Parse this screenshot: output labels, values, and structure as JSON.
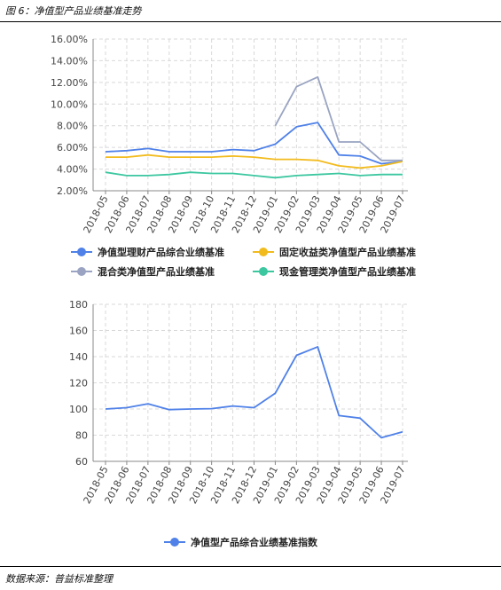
{
  "header": {
    "figure_title": "图 6：净值型产品业绩基准走势"
  },
  "footer": {
    "source": "数据来源：普益标准整理"
  },
  "colors": {
    "blue": "#4f81e8",
    "yellow": "#f2bb1d",
    "gray": "#9aa4c2",
    "green": "#3cc7a0",
    "grid": "#d9d9d9",
    "axis": "#888888"
  },
  "chart_data": [
    {
      "type": "line",
      "x": [
        "2018-05",
        "2018-06",
        "2018-07",
        "2018-08",
        "2018-09",
        "2018-10",
        "2018-11",
        "2018-12",
        "2019-01",
        "2019-02",
        "2019-03",
        "2019-04",
        "2019-05",
        "2019-06",
        "2019-07"
      ],
      "ylim": [
        0.02,
        0.16
      ],
      "yticks": [
        "2.00%",
        "4.00%",
        "6.00%",
        "8.00%",
        "10.00%",
        "12.00%",
        "14.00%",
        "16.00%"
      ],
      "grid": true,
      "legend": "bottom",
      "series": [
        {
          "name": "净值型理财产品综合业绩基准",
          "color": "#4f81e8",
          "values": [
            0.056,
            0.057,
            0.059,
            0.056,
            0.056,
            0.056,
            0.058,
            0.057,
            0.063,
            0.079,
            0.083,
            0.053,
            0.052,
            0.045,
            0.047
          ]
        },
        {
          "name": "固定收益类净值型产品业绩基准",
          "color": "#f2bb1d",
          "values": [
            0.051,
            0.051,
            0.053,
            0.051,
            0.051,
            0.051,
            0.052,
            0.051,
            0.049,
            0.049,
            0.048,
            0.043,
            0.041,
            0.043,
            0.047
          ]
        },
        {
          "name": "混合类净值型产品业绩基准",
          "color": "#9aa4c2",
          "values": [
            null,
            null,
            null,
            null,
            null,
            null,
            null,
            null,
            0.08,
            0.116,
            0.125,
            0.065,
            0.065,
            0.048,
            0.048
          ]
        },
        {
          "name": "现金管理类净值型产品业绩基准",
          "color": "#3cc7a0",
          "values": [
            0.037,
            0.034,
            0.034,
            0.035,
            0.037,
            0.036,
            0.036,
            0.034,
            0.032,
            0.034,
            0.035,
            0.036,
            0.034,
            0.035,
            0.035
          ]
        }
      ]
    },
    {
      "type": "line",
      "x": [
        "2018-05",
        "2018-06",
        "2018-07",
        "2018-08",
        "2018-09",
        "2018-10",
        "2018-11",
        "2018-12",
        "2019-01",
        "2019-02",
        "2019-03",
        "2019-04",
        "2019-05",
        "2019-06",
        "2019-07"
      ],
      "ylim": [
        60,
        180
      ],
      "yticks": [
        "60",
        "80",
        "100",
        "120",
        "140",
        "160",
        "180"
      ],
      "grid": true,
      "legend": "bottom",
      "series": [
        {
          "name": "净值型产品综合业绩基准指数",
          "color": "#4f81e8",
          "values": [
            100,
            101,
            104,
            99.5,
            100,
            100.3,
            102.3,
            101,
            112,
            141,
            147.5,
            95,
            93,
            78,
            82.5
          ]
        }
      ]
    }
  ]
}
